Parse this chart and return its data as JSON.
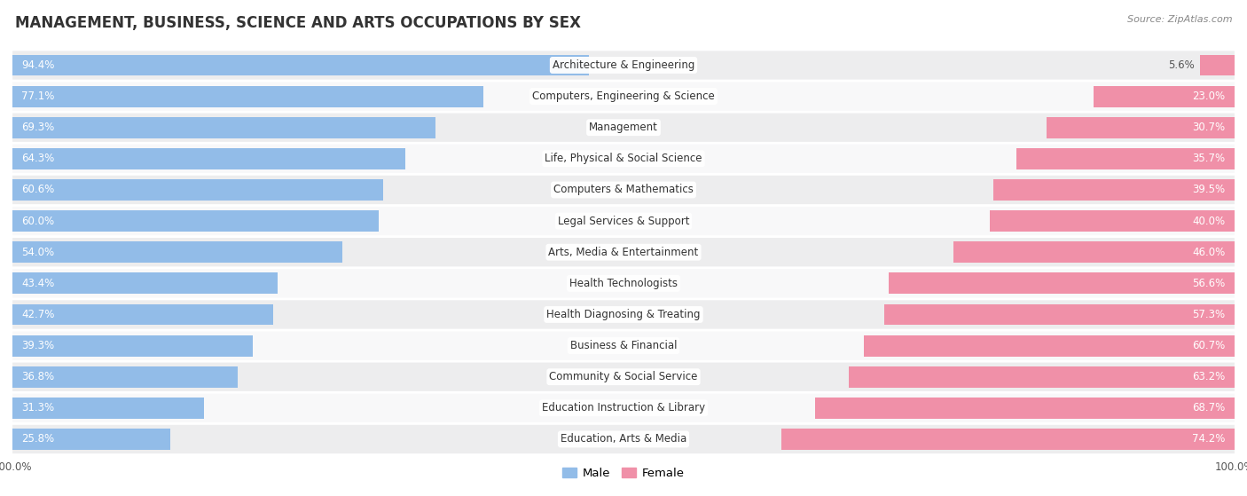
{
  "title": "MANAGEMENT, BUSINESS, SCIENCE AND ARTS OCCUPATIONS BY SEX",
  "source": "Source: ZipAtlas.com",
  "categories": [
    "Architecture & Engineering",
    "Computers, Engineering & Science",
    "Management",
    "Life, Physical & Social Science",
    "Computers & Mathematics",
    "Legal Services & Support",
    "Arts, Media & Entertainment",
    "Health Technologists",
    "Health Diagnosing & Treating",
    "Business & Financial",
    "Community & Social Service",
    "Education Instruction & Library",
    "Education, Arts & Media"
  ],
  "male_pct": [
    94.4,
    77.1,
    69.3,
    64.3,
    60.6,
    60.0,
    54.0,
    43.4,
    42.7,
    39.3,
    36.8,
    31.3,
    25.8
  ],
  "female_pct": [
    5.6,
    23.0,
    30.7,
    35.7,
    39.5,
    40.0,
    46.0,
    56.6,
    57.3,
    60.7,
    63.2,
    68.7,
    74.2
  ],
  "male_color": "#92bce8",
  "female_color": "#f090a8",
  "bg_color": "#ffffff",
  "row_bg_even": "#ededee",
  "row_bg_odd": "#f8f8f9",
  "title_fontsize": 12,
  "label_fontsize": 8.5,
  "tick_fontsize": 8.5,
  "legend_fontsize": 9.5,
  "male_label_color": "#ffffff",
  "female_label_color": "#ffffff",
  "outside_label_color": "#555555"
}
